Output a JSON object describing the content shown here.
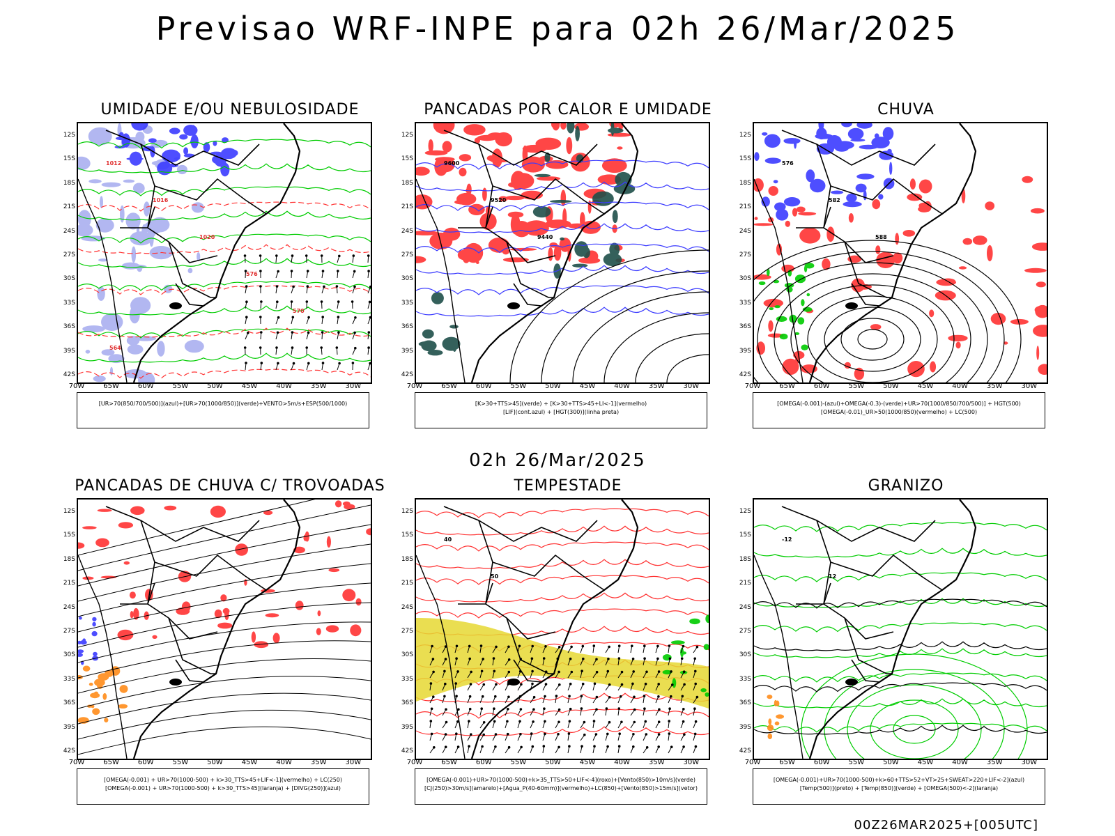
{
  "main_title": "Previsao WRF-INPE  para 02h 26/Mar/2025",
  "subtitle": "02h 26/Mar/2025",
  "footer": "00Z26MAR2025+[005UTC]",
  "lat_labels": [
    "12S",
    "15S",
    "18S",
    "21S",
    "24S",
    "27S",
    "30S",
    "33S",
    "36S",
    "39S",
    "42S"
  ],
  "lon_labels": [
    "70W",
    "65W",
    "60W",
    "55W",
    "50W",
    "45W",
    "40W",
    "35W",
    "30W"
  ],
  "colors": {
    "blue": "#3b3bff",
    "green": "#00cc00",
    "red": "#ff3333",
    "dark_teal": "#1f4f4a",
    "orange": "#ff8c1a",
    "yellow": "#e6d832",
    "lavender": "#aab0f0"
  },
  "panels": [
    {
      "title": "UMIDADE E/OU NEBULOSIDADE",
      "legend_lines": [
        "[UR>70(850/700/500)](azul)+[UR>70(1000/850)](verde)+VENTO>5m/s+ESP(500/1000)"
      ],
      "contour_labels": [
        "1012",
        "1016",
        "1020",
        "576",
        "570",
        "564"
      ]
    },
    {
      "title": "PANCADAS POR CALOR E UMIDADE",
      "legend_lines": [
        "[K>30+TTS>45](verde) + [K>30+TTS>45+LI<-1](vermelho)",
        "[LIF](cont.azul) + [HGT(300)](linha preta)"
      ],
      "contour_labels": [
        "9600",
        "9520",
        "9440"
      ]
    },
    {
      "title": "CHUVA",
      "legend_lines": [
        "[OMEGA(-0.001)-(azul)+OMEGA(-0.3)-(verde)+UR>70(1000/850/700/500)] + HGT(500)",
        "[OMEGA(-0.01)_UR>50(1000/850)(vermelho) + LC(500)"
      ],
      "contour_labels": [
        "576",
        "582",
        "588"
      ]
    },
    {
      "title": "PANCADAS DE CHUVA C/ TROVOADAS",
      "legend_lines": [
        "[OMEGA(-0.001) + UR>70(1000-500) + k>30_TTS>45+LIF<-1](vermelho) + LC(250)",
        "[OMEGA(-0.001) + UR>70(1000-500) + k>30_TTS>45](laranja) + [DIVG(250)](azul)"
      ],
      "contour_labels": []
    },
    {
      "title": "TEMPESTADE",
      "legend_lines": [
        "[OMEGA(-0.001)+UR>70(1000-500)+k>35_TTS>50+LIF<-4](roxo)+[Vento(850)>10m/s](verde)",
        "[CJ(250)>30m/s](amarelo)+[Agua_P(40-60mm)](vermelho)+LC(850)+[Vento(850)>15m/s](vetor)"
      ],
      "contour_labels": [
        "40",
        "50"
      ]
    },
    {
      "title": "GRANIZO",
      "legend_lines": [
        "[OMEGA(-0.001)+UR>70(1000-500)+k>60+TTS>52+VT>25+SWEAT>220+LIF<-2](azul)",
        "[Temp(500)](preto) + [Temp(850)](verde) + [OMEGA(500)<-2](laranja)"
      ],
      "contour_labels": [
        "-12",
        "12"
      ]
    }
  ]
}
